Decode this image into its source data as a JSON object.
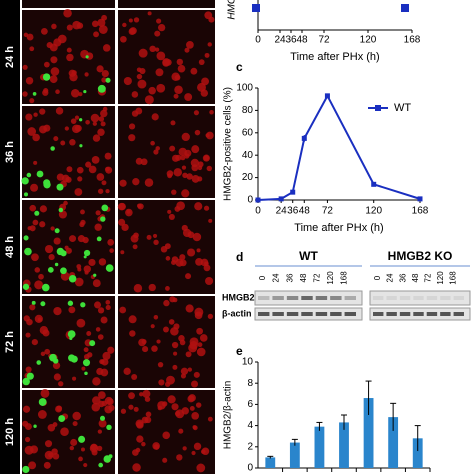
{
  "images": {
    "rows": [
      "24 h",
      "36 h",
      "48 h",
      "72 h",
      "120 h"
    ]
  },
  "panel_labels": [
    "c",
    "d",
    "e"
  ],
  "blot": {
    "groups": [
      "WT",
      "HMGB2 KO"
    ],
    "lanes": [
      "0",
      "24",
      "36",
      "48",
      "72",
      "120",
      "168"
    ],
    "bands": [
      "HMGB2",
      "β-actin"
    ]
  },
  "chart_data": [
    {
      "type": "axis",
      "ylabel": "HMG",
      "xlabel": "Time after PHx (h)",
      "xlim": [
        0,
        168
      ],
      "xticks": [
        0,
        24,
        36,
        48,
        72,
        120,
        168
      ]
    },
    {
      "type": "line",
      "ylabel": "HMGB2-positive cells (%)",
      "xlabel": "Time after PHx (h)",
      "x": [
        0,
        24,
        36,
        48,
        72,
        120,
        168
      ],
      "series": [
        {
          "name": "WT",
          "color": "#1a2fc0",
          "values": [
            0,
            1,
            7,
            55,
            93,
            14,
            1
          ],
          "errors": [
            0.5,
            0.5,
            1,
            3,
            1.5,
            1,
            0.5
          ]
        }
      ],
      "xlim": [
        0,
        168
      ],
      "xticks": [
        0,
        24,
        36,
        48,
        72,
        120,
        168
      ],
      "ylim": [
        0,
        100
      ],
      "yticks": [
        0,
        20,
        40,
        60,
        80,
        100
      ],
      "legend": "upper right"
    },
    {
      "type": "bar",
      "ylabel": "HMGB2/β-actin",
      "categories": [
        null,
        null,
        null,
        null,
        null,
        null,
        null
      ],
      "values": [
        1,
        2.4,
        3.9,
        4.3,
        6.6,
        4.8,
        2.8
      ],
      "errors": [
        0.1,
        0.3,
        0.4,
        0.7,
        1.6,
        1.3,
        1.2
      ],
      "color": "#2a85cc",
      "ylim": [
        0,
        10
      ],
      "yticks": [
        0,
        2,
        4,
        6,
        8,
        10
      ]
    }
  ]
}
